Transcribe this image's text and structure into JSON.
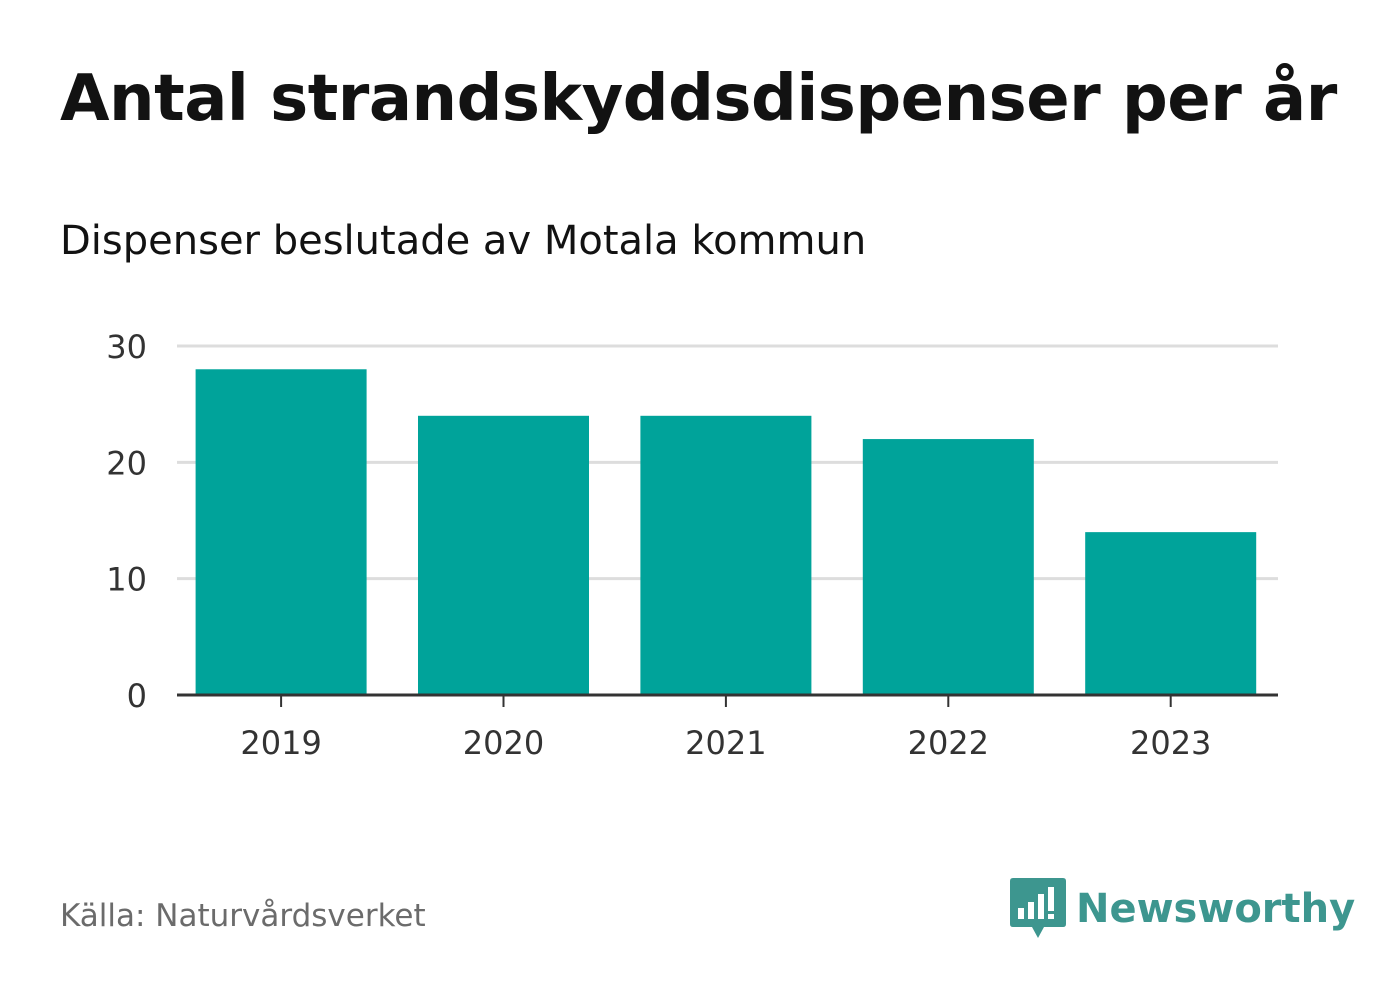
{
  "header": {
    "title": "Antal strandskyddsdispenser per år",
    "subtitle": "Dispenser beslutade av Motala kommun"
  },
  "footer": {
    "source": "Källa: Naturvårdsverket",
    "brand": "Newsworthy"
  },
  "colors": {
    "bar": "#00a39a",
    "brand": "#3d968f",
    "grid": "#dddddd",
    "axis": "#333333"
  },
  "icons": {
    "brand_logo": "bar-chart-speech-bubble-icon"
  },
  "chart_data": {
    "type": "bar",
    "title": "Antal strandskyddsdispenser per år",
    "subtitle": "Dispenser beslutade av Motala kommun",
    "xlabel": "",
    "ylabel": "",
    "categories": [
      "2019",
      "2020",
      "2021",
      "2022",
      "2023"
    ],
    "values": [
      28,
      24,
      24,
      22,
      14
    ],
    "ylim": [
      0,
      30
    ],
    "yticks": [
      0,
      10,
      20,
      30
    ],
    "grid": true,
    "legend": "none"
  }
}
